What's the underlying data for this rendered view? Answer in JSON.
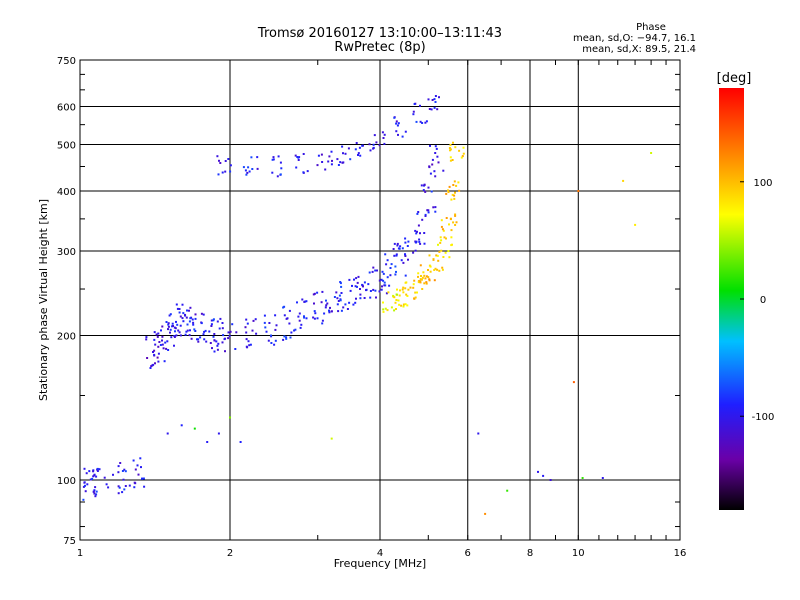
{
  "title": {
    "line1": "Tromsø 20160127 13:10:00–13:11:43",
    "line2": "RwPretec (8p)"
  },
  "phase_stats": {
    "header": "Phase",
    "o_line": "mean, sd,O: −94.7, 16.1",
    "x_line": "mean, sd,X:  89.5, 21.4"
  },
  "chart_data": {
    "type": "scatter",
    "title": "Tromsø 20160127 13:10:00–13:11:43",
    "subtitle": "RwPretec (8p)",
    "xlabel": "Frequency [MHz]",
    "ylabel": "Stationary phase Virtual Height [km]",
    "xscale": "log",
    "yscale": "log",
    "xlim": [
      1,
      16
    ],
    "ylim": [
      75,
      750
    ],
    "x_ticks": [
      1,
      2,
      4,
      6,
      8,
      10,
      16
    ],
    "y_ticks": [
      75,
      100,
      200,
      300,
      400,
      500,
      600,
      750
    ],
    "grid": true,
    "colorbar": {
      "label": "[deg]",
      "range": [
        -180,
        180
      ],
      "ticks": [
        100,
        0,
        -100
      ],
      "colormap": [
        "#000000",
        "#6a00a8",
        "#1f1fff",
        "#00c0ff",
        "#00e000",
        "#ffff00",
        "#ff8000",
        "#ff0000"
      ]
    },
    "series": [
      {
        "points_by_phase": "o",
        "x": [
          1.0,
          1.05,
          1.1,
          1.2,
          1.3,
          1.4,
          1.45,
          1.5,
          1.55,
          1.6,
          1.65,
          1.7,
          1.8,
          1.9,
          2.0,
          2.2,
          2.4,
          2.6,
          2.8,
          3.0,
          3.2,
          3.4,
          3.6,
          3.8,
          4.0,
          4.2,
          4.4,
          4.6,
          4.8,
          5.0,
          5.2
        ],
        "y": [
          97,
          98,
          100,
          101,
          103,
          185,
          190,
          200,
          210,
          215,
          212,
          208,
          205,
          200,
          198,
          200,
          205,
          212,
          220,
          228,
          235,
          242,
          250,
          258,
          265,
          275,
          288,
          305,
          335,
          390,
          460
        ],
        "phase": [
          -95,
          -95,
          -100,
          -95,
          -100,
          -110,
          -105,
          -100,
          -95,
          -100,
          -100,
          -95,
          -100,
          -95,
          -100,
          -100,
          -95,
          -90,
          -95,
          -100,
          -95,
          -90,
          -95,
          -100,
          -95,
          -90,
          -95,
          -100,
          -95,
          -100,
          -105
        ]
      },
      {
        "points_by_phase": "x",
        "x": [
          4.2,
          4.4,
          4.6,
          4.8,
          5.0,
          5.2,
          5.4,
          5.5,
          5.6,
          5.7
        ],
        "y": [
          235,
          240,
          248,
          258,
          268,
          285,
          305,
          340,
          400,
          480
        ],
        "phase": [
          70,
          80,
          90,
          95,
          100,
          90,
          85,
          95,
          100,
          90
        ]
      },
      {
        "points_by_phase": "F2-upper",
        "x": [
          1.95,
          2.2,
          2.5,
          2.8,
          3.1,
          3.4,
          3.7,
          4.0,
          4.4,
          4.8,
          5.1
        ],
        "y": [
          450,
          448,
          450,
          455,
          462,
          475,
          490,
          515,
          545,
          580,
          610
        ],
        "phase": [
          -100,
          -95,
          -90,
          -95,
          -100,
          -95,
          -100,
          -105,
          -100,
          -95,
          -100
        ]
      },
      {
        "points_by_phase": "scattered",
        "x": [
          1.5,
          1.6,
          1.7,
          1.8,
          1.9,
          2.0,
          2.1,
          3.2,
          6.3,
          6.5,
          7.2,
          8.3,
          8.5,
          8.8,
          9.8,
          10.0,
          10.2,
          11.2,
          12.3,
          13.0,
          14.0
        ],
        "y": [
          125,
          130,
          128,
          120,
          125,
          135,
          120,
          122,
          125,
          85,
          95,
          104,
          102,
          100,
          160,
          400,
          101,
          101,
          420,
          340,
          480
        ],
        "phase": [
          -100,
          -90,
          10,
          -95,
          -100,
          40,
          -90,
          60,
          -100,
          120,
          20,
          -100,
          -95,
          -110,
          140,
          130,
          20,
          -100,
          90,
          80,
          60
        ]
      }
    ]
  }
}
